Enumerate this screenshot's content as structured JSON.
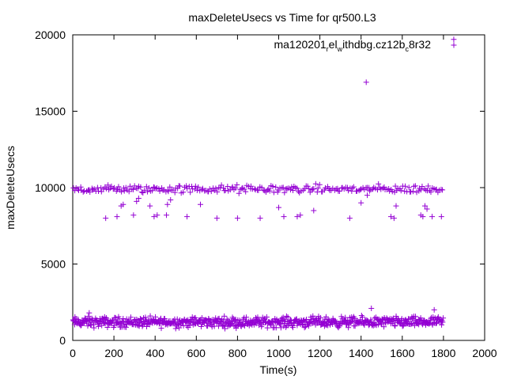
{
  "chart_data": {
    "type": "scatter",
    "title": "maxDeleteUsecs vs Time for qr500.L3",
    "xlabel": "Time(s)",
    "ylabel": "maxDeleteUsecs",
    "xlim": [
      0,
      2000
    ],
    "ylim": [
      0,
      20000
    ],
    "x_ticks": [
      0,
      200,
      400,
      600,
      800,
      1000,
      1200,
      1400,
      1600,
      1800,
      2000
    ],
    "y_ticks": [
      0,
      5000,
      10000,
      15000,
      20000
    ],
    "x_tick_labels": [
      "0",
      "200",
      "400",
      "600",
      "800",
      "1000",
      "1200",
      "1400",
      "1600",
      "1800",
      "2000"
    ],
    "y_tick_labels": [
      "0",
      "5000",
      "10000",
      "15000",
      "20000"
    ],
    "legend_position": "top-right",
    "series": [
      {
        "name": "ma120201_rel_withdbg.cz12b_c8r32",
        "legend_parts": [
          "ma120201",
          "r",
          "el",
          "w",
          "ithdbg.cz12b",
          "c",
          "8r32"
        ],
        "color": "#9400d3",
        "marker": "+",
        "bands": [
          {
            "x_range": [
              0,
              1800
            ],
            "y_range": [
              700,
              1700
            ],
            "approx_points": 700,
            "description": "dense lower band"
          },
          {
            "x_range": [
              0,
              1800
            ],
            "y_range": [
              9500,
              10300
            ],
            "approx_points": 260,
            "description": "upper band near 10000"
          }
        ],
        "points": [
          [
            160,
            8000
          ],
          [
            215,
            8100
          ],
          [
            235,
            8800
          ],
          [
            245,
            8900
          ],
          [
            295,
            8200
          ],
          [
            310,
            9100
          ],
          [
            320,
            9300
          ],
          [
            375,
            8800
          ],
          [
            395,
            8100
          ],
          [
            410,
            8200
          ],
          [
            455,
            8200
          ],
          [
            460,
            8900
          ],
          [
            475,
            9200
          ],
          [
            555,
            8100
          ],
          [
            620,
            8900
          ],
          [
            700,
            8000
          ],
          [
            800,
            8000
          ],
          [
            910,
            8000
          ],
          [
            1000,
            8700
          ],
          [
            1025,
            8100
          ],
          [
            1090,
            8100
          ],
          [
            1105,
            8200
          ],
          [
            1170,
            8500
          ],
          [
            1345,
            8000
          ],
          [
            1400,
            9000
          ],
          [
            1430,
            9500
          ],
          [
            1545,
            8100
          ],
          [
            1560,
            8000
          ],
          [
            1570,
            8800
          ],
          [
            1690,
            8200
          ],
          [
            1700,
            8100
          ],
          [
            1710,
            8800
          ],
          [
            1720,
            8600
          ],
          [
            1745,
            8100
          ],
          [
            1790,
            8100
          ],
          [
            1450,
            2100
          ],
          [
            1755,
            2000
          ],
          [
            80,
            1800
          ],
          [
            1425,
            16900
          ],
          [
            1850,
            19700
          ]
        ]
      }
    ]
  }
}
